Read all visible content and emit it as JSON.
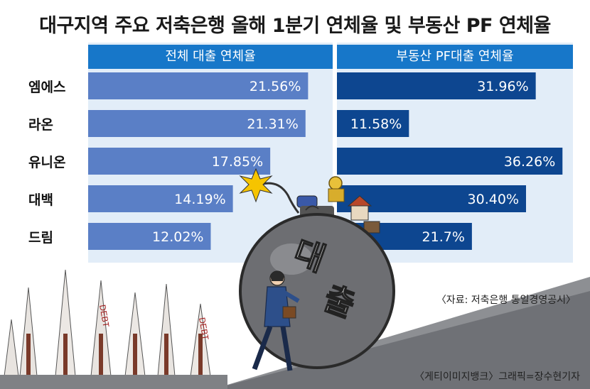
{
  "title": "대구지역 주요 저축은행 올해 1분기 연체율 및 부동산 PF 연체율",
  "source": "〈자료: 저축은행 통일경영공시〉",
  "credit": "〈게티이미지뱅크〉그래픽=장수현기자",
  "illustration": {
    "bomb_text_1": "대",
    "bomb_text_2": "출",
    "arrow_text_1": "DEBT",
    "arrow_text_2": "DEBT"
  },
  "colors": {
    "header": "#1777c9",
    "left_bar": "#5a7fc6",
    "right_bar": "#0d4690",
    "panel": "#e2edf8",
    "label_box": "#ffffff"
  },
  "chart_data": {
    "type": "bar",
    "title": "대구지역 주요 저축은행 올해 1분기 연체율 및 부동산 PF 연체율",
    "categories": [
      "엠에스",
      "라온",
      "유니온",
      "대백",
      "드림"
    ],
    "series": [
      {
        "name": "전체 대출 연체율",
        "values": [
          21.56,
          21.31,
          17.85,
          14.19,
          12.02
        ],
        "labels": [
          "21.56%",
          "21.31%",
          "17.85%",
          "14.19%",
          "12.02%"
        ]
      },
      {
        "name": "부동산 PF대출 연체율",
        "values": [
          31.96,
          11.58,
          36.26,
          30.4,
          21.7
        ],
        "labels": [
          "31.96%",
          "11.58%",
          "36.26%",
          "30.40%",
          "21.7%"
        ]
      }
    ]
  }
}
